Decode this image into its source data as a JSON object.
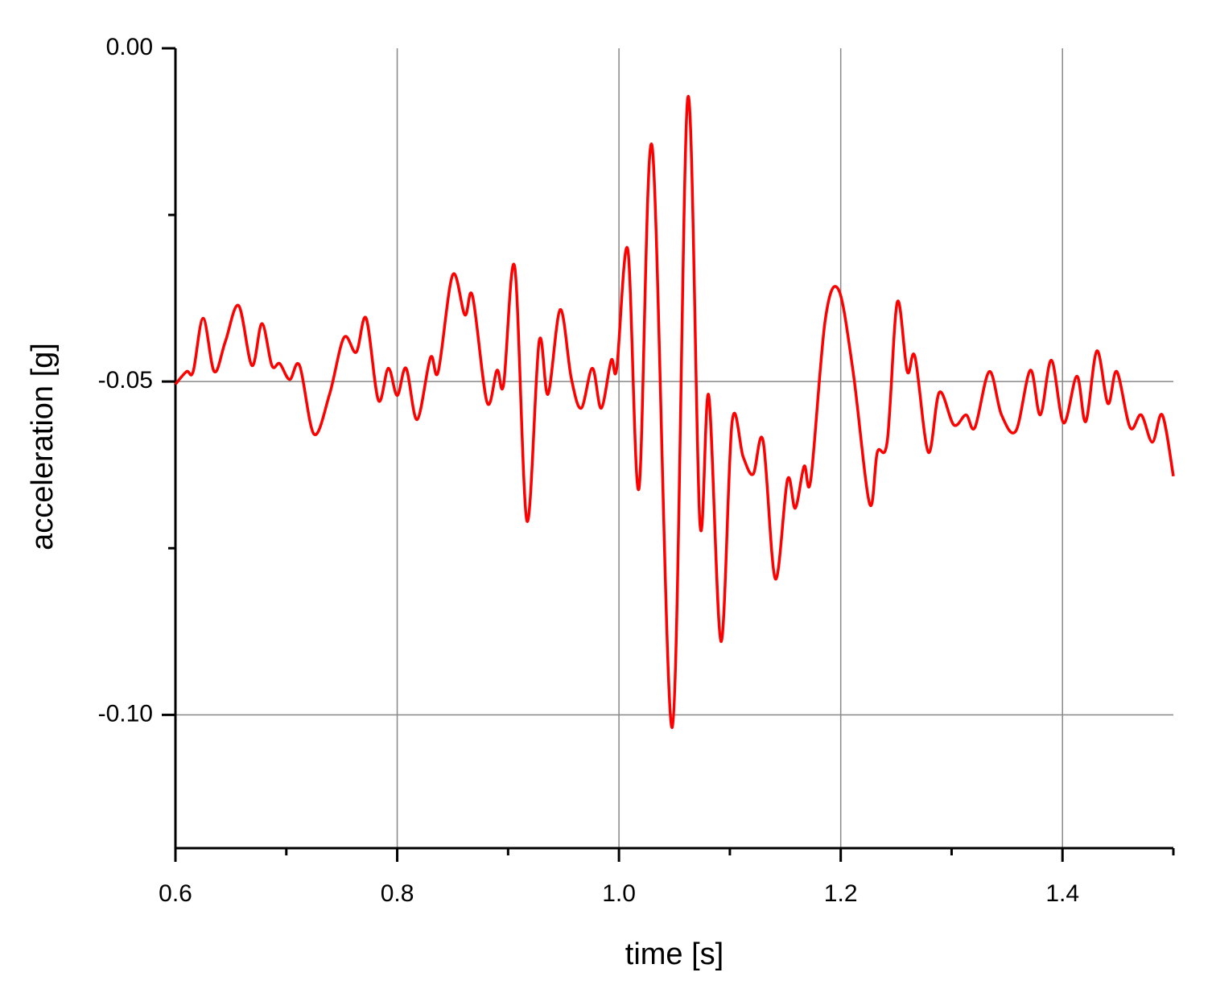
{
  "chart_data": {
    "type": "line",
    "xlabel": "time [s]",
    "ylabel": "acceleration [g]",
    "xlim": [
      0.6,
      1.5
    ],
    "ylim": [
      -0.12,
      0
    ],
    "xticks": [
      0.6,
      0.8,
      {
        "value": 1,
        "label": "1.0"
      },
      1.2,
      1.4
    ],
    "yticks": [
      {
        "value": 0,
        "label": "0.00"
      },
      -0.05,
      {
        "value": -0.1,
        "label": "-0.10"
      }
    ],
    "xminorticks": [
      0.7,
      0.9,
      1.1,
      1.3,
      1.5
    ],
    "yminorticks": [
      -0.025,
      -0.075
    ],
    "grid": true,
    "series": [
      {
        "color": "#ff0000",
        "x": [
          0.6,
          0.61,
          0.616,
          0.625,
          0.635,
          0.645,
          0.657,
          0.669,
          0.678,
          0.687,
          0.694,
          0.703,
          0.712,
          0.725,
          0.739,
          0.752,
          0.763,
          0.772,
          0.783,
          0.792,
          0.8,
          0.808,
          0.818,
          0.83,
          0.837,
          0.85,
          0.861,
          0.868,
          0.881,
          0.89,
          0.896,
          0.906,
          0.917,
          0.928,
          0.936,
          0.947,
          0.957,
          0.966,
          0.976,
          0.984,
          0.993,
          0.998,
          1.008,
          1.018,
          1.03,
          1.048,
          1.062,
          1.073,
          1.081,
          1.092,
          1.102,
          1.112,
          1.121,
          1.13,
          1.141,
          1.152,
          1.159,
          1.167,
          1.173,
          1.186,
          1.198,
          1.211,
          1.226,
          1.233,
          1.242,
          1.251,
          1.26,
          1.267,
          1.279,
          1.289,
          1.302,
          1.313,
          1.321,
          1.334,
          1.345,
          1.358,
          1.371,
          1.38,
          1.39,
          1.401,
          1.413,
          1.421,
          1.431,
          1.441,
          1.449,
          1.461,
          1.471,
          1.481,
          1.49,
          1.5
        ],
        "values": [
          -0.0504,
          -0.0485,
          -0.0485,
          -0.0405,
          -0.0485,
          -0.044,
          -0.0386,
          -0.0476,
          -0.0413,
          -0.0476,
          -0.0473,
          -0.0497,
          -0.0476,
          -0.0579,
          -0.0519,
          -0.0434,
          -0.0456,
          -0.0405,
          -0.0528,
          -0.048,
          -0.0521,
          -0.048,
          -0.0557,
          -0.0464,
          -0.0485,
          -0.034,
          -0.04,
          -0.0372,
          -0.0531,
          -0.0483,
          -0.0504,
          -0.0328,
          -0.0709,
          -0.044,
          -0.0519,
          -0.0392,
          -0.0495,
          -0.054,
          -0.048,
          -0.054,
          -0.0468,
          -0.048,
          -0.0302,
          -0.0661,
          -0.0148,
          -0.1019,
          -0.0075,
          -0.0712,
          -0.0521,
          -0.089,
          -0.0561,
          -0.0613,
          -0.0639,
          -0.0589,
          -0.0796,
          -0.0647,
          -0.069,
          -0.0627,
          -0.0647,
          -0.0408,
          -0.0362,
          -0.0483,
          -0.0683,
          -0.0606,
          -0.0589,
          -0.0381,
          -0.0485,
          -0.0463,
          -0.0606,
          -0.0516,
          -0.0565,
          -0.055,
          -0.0569,
          -0.0485,
          -0.055,
          -0.0574,
          -0.0483,
          -0.055,
          -0.0468,
          -0.0562,
          -0.0492,
          -0.056,
          -0.0454,
          -0.0533,
          -0.0485,
          -0.0569,
          -0.055,
          -0.0591,
          -0.055,
          -0.0642
        ]
      }
    ]
  }
}
